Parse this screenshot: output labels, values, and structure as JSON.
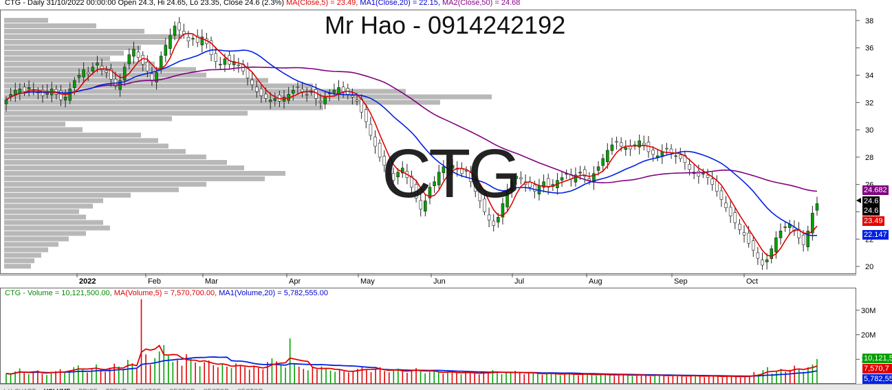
{
  "price_header": {
    "ticker_info": "CTG - Daily 31/10/2022 00:00:00 Open 24.3, Hi 24.65, Lo 23.35, Close 24.6 (2.3%)",
    "ma5": "MA(Close,5) = 23.49,",
    "ma20": "MA1(Close,20) = 22.15,",
    "ma50": "MA2(Close,50) = 24.68"
  },
  "volume_header": {
    "label": "CTG - Volume = 10,121,500.00,",
    "ma5": "MA(Volume,5) = 7,570,700.00,",
    "ma20": "MA1(Volume,20) = 5,782,555.00"
  },
  "watermark": {
    "name": "Mr Hao - 0914242192",
    "ticker": "CTG"
  },
  "price_tags": {
    "ma50": "24.682",
    "close": "24.6",
    "ma5": "23.49",
    "ma20": "22.147"
  },
  "volume_tags": {
    "vol": "10,121,5",
    "ma5": "7,570,7",
    "ma20": "5,782,55"
  },
  "tabs": [
    "\\ / \\ CHART",
    "VOLUME",
    "PRICE",
    "TREND",
    "SECTOR",
    "SECTOR",
    "SECTOR",
    "SECTOR"
  ],
  "colors": {
    "up": "#00a000",
    "down": "#e00000",
    "ma5": "#e00000",
    "ma20": "#0020e0",
    "ma50": "#800080",
    "profile": "#b8b8b8"
  },
  "chart_data": [
    {
      "type": "candlestick",
      "title": "CTG - Daily",
      "x_labels": [
        "2022",
        "Feb",
        "Mar",
        "Apr",
        "May",
        "Jun",
        "Jul",
        "Aug",
        "Sep",
        "Oct"
      ],
      "y_ticks": [
        "38",
        "36",
        "34",
        "32",
        "30",
        "28",
        "26",
        "24",
        "22",
        "20"
      ],
      "ylim": [
        19.5,
        38.8
      ],
      "close": [
        32.2,
        32.6,
        32.9,
        33.0,
        32.8,
        33.1,
        32.9,
        32.7,
        32.5,
        32.8,
        33.0,
        32.6,
        32.2,
        32.4,
        33.0,
        33.6,
        34.0,
        34.4,
        34.1,
        34.6,
        34.9,
        34.4,
        34.2,
        33.7,
        33.2,
        33.6,
        34.6,
        35.5,
        35.9,
        35.3,
        34.8,
        34.3,
        33.6,
        34.2,
        35.4,
        36.2,
        36.9,
        37.6,
        37.3,
        37.0,
        36.5,
        36.7,
        36.4,
        36.8,
        36.3,
        35.5,
        35.0,
        34.8,
        35.2,
        34.8,
        35.0,
        34.7,
        34.3,
        33.8,
        33.3,
        32.8,
        32.5,
        32.3,
        32.2,
        32.3,
        32.1,
        32.4,
        32.6,
        32.9,
        33.1,
        32.8,
        32.6,
        32.8,
        32.3,
        32.0,
        32.4,
        32.7,
        32.9,
        33.1,
        32.8,
        32.6,
        32.4,
        32.1,
        31.3,
        30.6,
        29.6,
        28.8,
        28.0,
        27.4,
        26.8,
        26.3,
        26.9,
        27.2,
        26.5,
        25.8,
        25.0,
        24.2,
        24.8,
        25.8,
        26.2,
        26.9,
        27.3,
        27.2,
        27.4,
        27.1,
        26.8,
        27.0,
        26.2,
        25.5,
        24.8,
        24.0,
        23.4,
        23.0,
        23.6,
        24.6,
        25.5,
        26.2,
        26.6,
        26.4,
        26.0,
        25.8,
        25.5,
        25.9,
        26.2,
        25.8,
        26.0,
        26.3,
        26.5,
        26.8,
        26.4,
        26.7,
        26.9,
        26.6,
        26.3,
        26.8,
        27.3,
        27.9,
        28.5,
        28.9,
        29.1,
        28.8,
        28.7,
        28.6,
        28.9,
        29.2,
        28.9,
        28.4,
        28.2,
        28.1,
        28.4,
        28.6,
        28.3,
        28.1,
        27.9,
        27.6,
        27.1,
        26.8,
        26.6,
        26.9,
        26.5,
        26.0,
        25.5,
        24.9,
        24.3,
        23.7,
        23.2,
        22.7,
        22.3,
        21.7,
        21.2,
        20.6,
        20.1,
        20.5,
        21.3,
        22.1,
        22.6,
        22.9,
        23.1,
        22.6,
        22.1,
        21.6,
        22.6,
        23.9,
        24.6
      ],
      "ma5_last": 23.49,
      "ma20_last": 22.15,
      "ma50_last": 24.68,
      "last_close": 24.6
    },
    {
      "type": "bar",
      "title": "CTG - Volume",
      "y_ticks": [
        "30M",
        "20M",
        "10M"
      ],
      "ylim": [
        0,
        35
      ],
      "volume_millions": [
        4.2,
        3.8,
        5.1,
        6.3,
        4.4,
        3.9,
        4.8,
        5.5,
        4.1,
        3.6,
        4.9,
        5.2,
        6.0,
        4.7,
        5.3,
        6.8,
        7.5,
        5.9,
        4.6,
        6.2,
        7.9,
        5.4,
        4.9,
        6.6,
        8.2,
        7.1,
        5.6,
        9.8,
        8.4,
        6.1,
        34.5,
        12.0,
        7.8,
        10.5,
        13.2,
        15.8,
        11.4,
        8.9,
        9.6,
        7.4,
        12.1,
        10.3,
        8.7,
        7.2,
        8.8,
        9.5,
        7.6,
        6.8,
        8.1,
        7.0,
        6.4,
        8.3,
        7.7,
        6.9,
        5.8,
        7.2,
        6.5,
        5.9,
        8.9,
        10.4,
        9.2,
        7.8,
        6.6,
        18.5,
        8.5,
        7.0,
        6.1,
        5.5,
        6.8,
        5.9,
        7.1,
        6.2,
        5.4,
        4.9,
        5.6,
        5.1,
        4.6,
        5.3,
        6.1,
        7.2,
        6.0,
        4.8,
        5.9,
        6.8,
        5.2,
        4.7,
        5.4,
        6.2,
        5.0,
        4.5,
        5.7,
        6.4,
        5.1,
        4.3,
        4.9,
        5.5,
        4.6,
        4.1,
        4.8,
        5.2,
        4.4,
        3.9,
        4.6,
        5.0,
        4.2,
        3.8,
        4.5,
        4.9,
        5.6,
        4.7,
        4.0,
        4.4,
        4.8,
        5.3,
        4.5,
        3.9,
        4.3,
        4.7,
        4.1,
        3.6,
        4.2,
        4.6,
        3.9,
        3.5,
        4.0,
        4.4,
        3.8,
        3.4,
        3.9,
        4.3,
        3.7,
        3.3,
        3.8,
        4.1,
        3.6,
        3.2,
        3.7,
        4.0,
        3.5,
        3.1,
        3.6,
        3.9,
        3.4,
        3.0,
        3.5,
        3.8,
        3.3,
        2.9,
        3.4,
        3.7,
        3.2,
        2.8,
        3.3,
        3.6,
        3.1,
        2.7,
        3.2,
        3.5,
        3.0,
        2.6,
        3.1,
        3.4,
        2.9,
        2.5,
        3.0,
        3.3,
        4.8,
        3.9,
        5.6,
        6.8,
        4.2,
        5.3,
        6.1,
        4.9,
        5.7,
        7.4,
        6.2,
        5.0,
        6.8,
        7.9,
        10.1
      ],
      "ma5_last": 7.5707,
      "ma20_last": 5.782555
    }
  ]
}
